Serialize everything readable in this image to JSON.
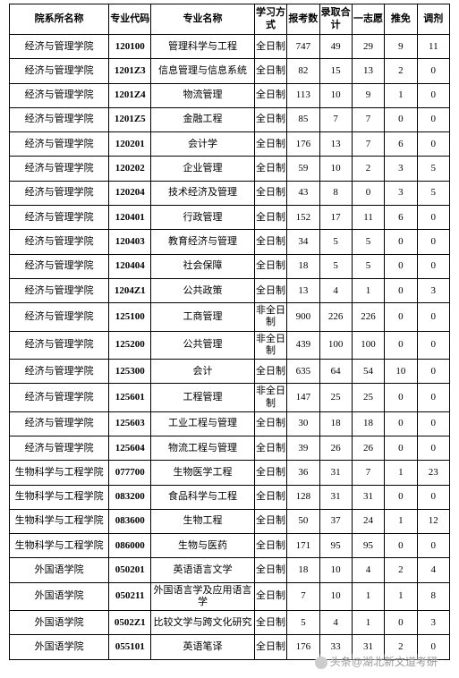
{
  "headers": {
    "dept": "院系所名称",
    "code": "专业代码",
    "major": "专业名称",
    "mode": "学习方式",
    "applicants": "报考数",
    "admitted": "录取合计",
    "first_choice": "一志愿",
    "recommend": "推免",
    "transfer": "调剂"
  },
  "rows": [
    {
      "dept": "经济与管理学院",
      "code": "120100",
      "major": "管理科学与工程",
      "mode": "全日制",
      "c1": "747",
      "c2": "49",
      "c3": "29",
      "c4": "9",
      "c5": "11"
    },
    {
      "dept": "经济与管理学院",
      "code": "1201Z3",
      "major": "信息管理与信息系统",
      "mode": "全日制",
      "c1": "82",
      "c2": "15",
      "c3": "13",
      "c4": "2",
      "c5": "0"
    },
    {
      "dept": "经济与管理学院",
      "code": "1201Z4",
      "major": "物流管理",
      "mode": "全日制",
      "c1": "113",
      "c2": "10",
      "c3": "9",
      "c4": "1",
      "c5": "0"
    },
    {
      "dept": "经济与管理学院",
      "code": "1201Z5",
      "major": "金融工程",
      "mode": "全日制",
      "c1": "85",
      "c2": "7",
      "c3": "7",
      "c4": "0",
      "c5": "0"
    },
    {
      "dept": "经济与管理学院",
      "code": "120201",
      "major": "会计学",
      "mode": "全日制",
      "c1": "176",
      "c2": "13",
      "c3": "7",
      "c4": "6",
      "c5": "0"
    },
    {
      "dept": "经济与管理学院",
      "code": "120202",
      "major": "企业管理",
      "mode": "全日制",
      "c1": "59",
      "c2": "10",
      "c3": "2",
      "c4": "3",
      "c5": "5"
    },
    {
      "dept": "经济与管理学院",
      "code": "120204",
      "major": "技术经济及管理",
      "mode": "全日制",
      "c1": "43",
      "c2": "8",
      "c3": "0",
      "c4": "3",
      "c5": "5"
    },
    {
      "dept": "经济与管理学院",
      "code": "120401",
      "major": "行政管理",
      "mode": "全日制",
      "c1": "152",
      "c2": "17",
      "c3": "11",
      "c4": "6",
      "c5": "0"
    },
    {
      "dept": "经济与管理学院",
      "code": "120403",
      "major": "教育经济与管理",
      "mode": "全日制",
      "c1": "34",
      "c2": "5",
      "c3": "5",
      "c4": "0",
      "c5": "0"
    },
    {
      "dept": "经济与管理学院",
      "code": "120404",
      "major": "社会保障",
      "mode": "全日制",
      "c1": "18",
      "c2": "5",
      "c3": "5",
      "c4": "0",
      "c5": "0"
    },
    {
      "dept": "经济与管理学院",
      "code": "1204Z1",
      "major": "公共政策",
      "mode": "全日制",
      "c1": "13",
      "c2": "4",
      "c3": "1",
      "c4": "0",
      "c5": "3"
    },
    {
      "dept": "经济与管理学院",
      "code": "125100",
      "major": "工商管理",
      "mode": "非全日制",
      "c1": "900",
      "c2": "226",
      "c3": "226",
      "c4": "0",
      "c5": "0"
    },
    {
      "dept": "经济与管理学院",
      "code": "125200",
      "major": "公共管理",
      "mode": "非全日制",
      "c1": "439",
      "c2": "100",
      "c3": "100",
      "c4": "0",
      "c5": "0"
    },
    {
      "dept": "经济与管理学院",
      "code": "125300",
      "major": "会计",
      "mode": "全日制",
      "c1": "635",
      "c2": "64",
      "c3": "54",
      "c4": "10",
      "c5": "0"
    },
    {
      "dept": "经济与管理学院",
      "code": "125601",
      "major": "工程管理",
      "mode": "非全日制",
      "c1": "147",
      "c2": "25",
      "c3": "25",
      "c4": "0",
      "c5": "0"
    },
    {
      "dept": "经济与管理学院",
      "code": "125603",
      "major": "工业工程与管理",
      "mode": "全日制",
      "c1": "30",
      "c2": "18",
      "c3": "18",
      "c4": "0",
      "c5": "0"
    },
    {
      "dept": "经济与管理学院",
      "code": "125604",
      "major": "物流工程与管理",
      "mode": "全日制",
      "c1": "39",
      "c2": "26",
      "c3": "26",
      "c4": "0",
      "c5": "0"
    },
    {
      "dept": "生物科学与工程学院",
      "code": "077700",
      "major": "生物医学工程",
      "mode": "全日制",
      "c1": "36",
      "c2": "31",
      "c3": "7",
      "c4": "1",
      "c5": "23"
    },
    {
      "dept": "生物科学与工程学院",
      "code": "083200",
      "major": "食品科学与工程",
      "mode": "全日制",
      "c1": "128",
      "c2": "31",
      "c3": "31",
      "c4": "0",
      "c5": "0"
    },
    {
      "dept": "生物科学与工程学院",
      "code": "083600",
      "major": "生物工程",
      "mode": "全日制",
      "c1": "50",
      "c2": "37",
      "c3": "24",
      "c4": "1",
      "c5": "12"
    },
    {
      "dept": "生物科学与工程学院",
      "code": "086000",
      "major": "生物与医药",
      "mode": "全日制",
      "c1": "171",
      "c2": "95",
      "c3": "95",
      "c4": "0",
      "c5": "0"
    },
    {
      "dept": "外国语学院",
      "code": "050201",
      "major": "英语语言文学",
      "mode": "全日制",
      "c1": "18",
      "c2": "10",
      "c3": "4",
      "c4": "2",
      "c5": "4"
    },
    {
      "dept": "外国语学院",
      "code": "050211",
      "major": "外国语言学及应用语言学",
      "mode": "全日制",
      "c1": "7",
      "c2": "10",
      "c3": "1",
      "c4": "1",
      "c5": "8"
    },
    {
      "dept": "外国语学院",
      "code": "0502Z1",
      "major": "比较文学与跨文化研究",
      "mode": "全日制",
      "c1": "5",
      "c2": "4",
      "c3": "1",
      "c4": "0",
      "c5": "3"
    },
    {
      "dept": "外国语学院",
      "code": "055101",
      "major": "英语笔译",
      "mode": "全日制",
      "c1": "176",
      "c2": "33",
      "c3": "31",
      "c4": "2",
      "c5": "0"
    }
  ],
  "watermark": {
    "prefix": "头条",
    "name": "@湖北新文道考研"
  }
}
